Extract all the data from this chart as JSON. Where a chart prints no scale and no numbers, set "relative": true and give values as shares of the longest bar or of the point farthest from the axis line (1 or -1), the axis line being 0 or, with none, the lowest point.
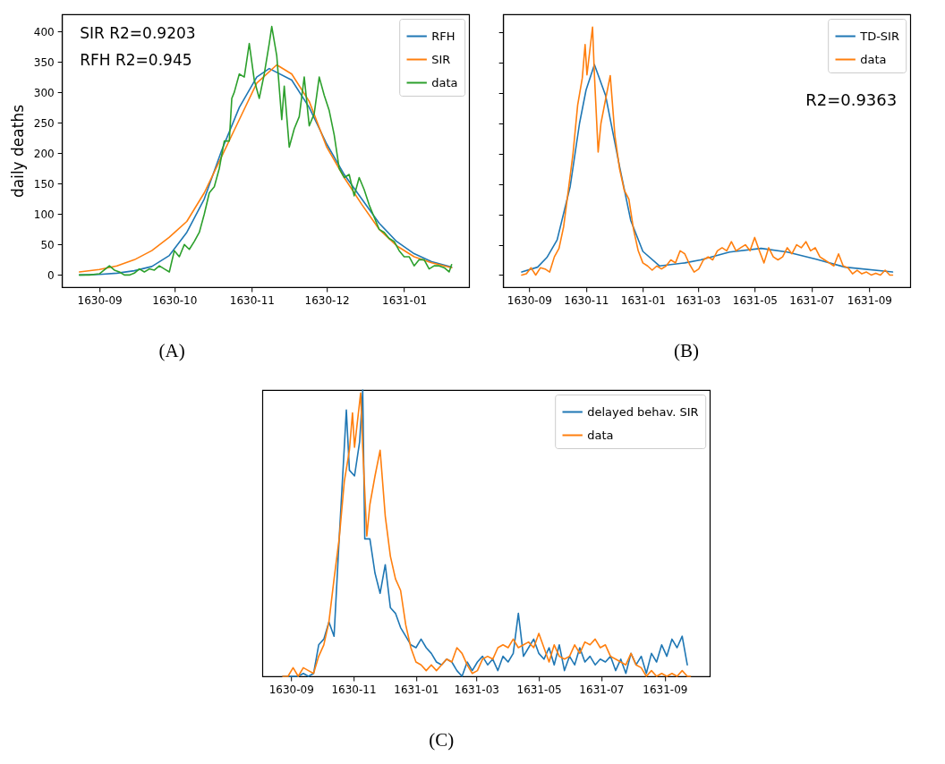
{
  "chart_data": [
    {
      "type": "line",
      "ylabel": "daily deaths",
      "xlim": [
        "1630-08-17",
        "1631-01-27"
      ],
      "xticks": [
        "1630-09",
        "1630-10",
        "1630-11",
        "1630-12",
        "1631-01"
      ],
      "ylim": [
        -20,
        428
      ],
      "yticks": [
        0,
        50,
        100,
        150,
        200,
        250,
        300,
        350,
        400
      ],
      "legend": "top right",
      "annotations": [
        "SIR R2=0.9203",
        "RFH R2=0.945",
        "(A)"
      ],
      "series": [
        {
          "name": "RFH",
          "color": "#1f77b4",
          "x": [
            "1630-08-24",
            "1630-09-01",
            "1630-09-08",
            "1630-09-15",
            "1630-09-22",
            "1630-09-29",
            "1630-10-06",
            "1630-10-13",
            "1630-10-20",
            "1630-10-27",
            "1630-11-03",
            "1630-11-08",
            "1630-11-17",
            "1630-11-24",
            "1630-12-01",
            "1630-12-08",
            "1630-12-15",
            "1630-12-22",
            "1630-12-29",
            "1631-01-05",
            "1631-01-12",
            "1631-01-20"
          ],
          "values": [
            0,
            1,
            3,
            7,
            14,
            32,
            70,
            125,
            205,
            275,
            325,
            339,
            320,
            275,
            215,
            165,
            125,
            85,
            55,
            35,
            22,
            13
          ]
        },
        {
          "name": "SIR",
          "color": "#ff7f0e",
          "x": [
            "1630-08-24",
            "1630-09-01",
            "1630-09-08",
            "1630-09-15",
            "1630-09-22",
            "1630-09-29",
            "1630-10-06",
            "1630-10-13",
            "1630-10-20",
            "1630-10-27",
            "1630-11-03",
            "1630-11-11",
            "1630-11-17",
            "1630-11-24",
            "1630-12-01",
            "1630-12-08",
            "1630-12-15",
            "1630-12-22",
            "1630-12-29",
            "1631-01-05",
            "1631-01-12",
            "1631-01-20"
          ],
          "values": [
            5,
            9,
            15,
            25,
            40,
            62,
            88,
            135,
            195,
            255,
            315,
            345,
            330,
            285,
            210,
            160,
            116,
            75,
            48,
            30,
            20,
            12
          ]
        },
        {
          "name": "data",
          "color": "#2ca02c",
          "x": [
            "1630-08-24",
            "1630-08-28",
            "1630-09-01",
            "1630-09-05",
            "1630-09-07",
            "1630-09-09",
            "1630-09-11",
            "1630-09-13",
            "1630-09-15",
            "1630-09-17",
            "1630-09-19",
            "1630-09-21",
            "1630-09-23",
            "1630-09-25",
            "1630-09-27",
            "1630-09-29",
            "1630-10-01",
            "1630-10-03",
            "1630-10-05",
            "1630-10-07",
            "1630-10-09",
            "1630-10-11",
            "1630-10-13",
            "1630-10-15",
            "1630-10-17",
            "1630-10-19",
            "1630-10-21",
            "1630-10-23",
            "1630-10-24",
            "1630-10-25",
            "1630-10-27",
            "1630-10-29",
            "1630-10-31",
            "1630-11-02",
            "1630-11-04",
            "1630-11-06",
            "1630-11-08",
            "1630-11-09",
            "1630-11-11",
            "1630-11-13",
            "1630-11-14",
            "1630-11-16",
            "1630-11-18",
            "1630-11-20",
            "1630-11-22",
            "1630-11-24",
            "1630-11-26",
            "1630-11-28",
            "1630-11-30",
            "1630-12-02",
            "1630-12-04",
            "1630-12-06",
            "1630-12-08",
            "1630-12-10",
            "1630-12-12",
            "1630-12-14",
            "1630-12-16",
            "1630-12-18",
            "1630-12-20",
            "1630-12-22",
            "1630-12-24",
            "1630-12-26",
            "1630-12-28",
            "1630-12-30",
            "1631-01-01",
            "1631-01-03",
            "1631-01-05",
            "1631-01-07",
            "1631-01-09",
            "1631-01-11",
            "1631-01-13",
            "1631-01-15",
            "1631-01-17",
            "1631-01-19",
            "1631-01-20"
          ],
          "values": [
            0,
            0,
            2,
            15,
            8,
            5,
            0,
            0,
            3,
            10,
            5,
            10,
            8,
            15,
            10,
            5,
            40,
            30,
            50,
            42,
            55,
            70,
            100,
            135,
            145,
            175,
            220,
            220,
            290,
            300,
            330,
            325,
            380,
            320,
            290,
            330,
            380,
            408,
            360,
            255,
            310,
            210,
            240,
            260,
            325,
            245,
            265,
            325,
            295,
            270,
            230,
            175,
            160,
            165,
            130,
            160,
            140,
            115,
            95,
            75,
            70,
            60,
            55,
            40,
            30,
            30,
            15,
            25,
            25,
            10,
            15,
            15,
            12,
            5,
            17
          ]
        }
      ]
    },
    {
      "type": "line",
      "xlim": [
        "1630-08-04",
        "1631-10-15"
      ],
      "xticks": [
        "1630-09",
        "1630-11",
        "1631-01",
        "1631-03",
        "1631-05",
        "1631-07",
        "1631-09"
      ],
      "ylim": [
        -20,
        430
      ],
      "yticks": [
        0,
        50,
        100,
        150,
        200,
        250,
        300,
        350,
        400
      ],
      "tick_labels": "x",
      "legend": "top right",
      "annotations": [
        "R2=0.9363",
        "(B)"
      ],
      "series": [
        {
          "name": "TD-SIR",
          "color": "#1f77b4",
          "x": [
            "1630-08-24",
            "1630-09-10",
            "1630-09-20",
            "1630-10-01",
            "1630-10-15",
            "1630-10-25",
            "1630-11-01",
            "1630-11-10",
            "1630-11-22",
            "1630-12-07",
            "1630-12-19",
            "1631-01-01",
            "1631-01-19",
            "1631-02-15",
            "1631-03-04",
            "1631-04-04",
            "1631-05-08",
            "1631-06-05",
            "1631-07-06",
            "1631-08-06",
            "1631-09-26"
          ],
          "values": [
            5,
            13,
            29,
            58,
            146,
            250,
            305,
            347,
            296,
            179,
            90,
            39,
            15,
            20,
            25,
            38,
            44,
            38,
            26,
            13,
            5
          ]
        },
        {
          "name": "data",
          "color": "#ff7f0e",
          "x": [
            "1630-08-24",
            "1630-08-29",
            "1630-09-03",
            "1630-09-08",
            "1630-09-13",
            "1630-09-18",
            "1630-09-23",
            "1630-09-28",
            "1630-10-03",
            "1630-10-08",
            "1630-10-13",
            "1630-10-18",
            "1630-10-23",
            "1630-10-28",
            "1630-10-31",
            "1630-11-02",
            "1630-11-08",
            "1630-11-10",
            "1630-11-14",
            "1630-11-17",
            "1630-11-22",
            "1630-11-27",
            "1630-12-02",
            "1630-12-07",
            "1630-12-12",
            "1630-12-17",
            "1630-12-22",
            "1630-12-27",
            "1631-01-01",
            "1631-01-06",
            "1631-01-11",
            "1631-01-16",
            "1631-01-21",
            "1631-01-26",
            "1631-01-31",
            "1631-02-05",
            "1631-02-10",
            "1631-02-15",
            "1631-02-20",
            "1631-02-25",
            "1631-03-02",
            "1631-03-07",
            "1631-03-12",
            "1631-03-17",
            "1631-03-22",
            "1631-03-27",
            "1631-04-01",
            "1631-04-06",
            "1631-04-11",
            "1631-04-16",
            "1631-04-21",
            "1631-04-26",
            "1631-05-01",
            "1631-05-06",
            "1631-05-11",
            "1631-05-16",
            "1631-05-21",
            "1631-05-26",
            "1631-05-31",
            "1631-06-05",
            "1631-06-10",
            "1631-06-15",
            "1631-06-20",
            "1631-06-25",
            "1631-06-30",
            "1631-07-05",
            "1631-07-10",
            "1631-07-15",
            "1631-07-20",
            "1631-07-25",
            "1631-07-30",
            "1631-08-04",
            "1631-08-09",
            "1631-08-14",
            "1631-08-19",
            "1631-08-24",
            "1631-08-29",
            "1631-09-03",
            "1631-09-08",
            "1631-09-13",
            "1631-09-18",
            "1631-09-23",
            "1631-09-26"
          ],
          "values": [
            0,
            2,
            12,
            0,
            12,
            10,
            5,
            30,
            44,
            80,
            140,
            200,
            280,
            325,
            380,
            330,
            409,
            330,
            203,
            250,
            290,
            329,
            230,
            175,
            140,
            125,
            75,
            40,
            20,
            15,
            8,
            15,
            10,
            15,
            25,
            20,
            40,
            35,
            18,
            5,
            10,
            25,
            30,
            25,
            40,
            45,
            40,
            55,
            40,
            45,
            50,
            40,
            62,
            40,
            20,
            45,
            30,
            25,
            30,
            45,
            35,
            50,
            45,
            55,
            40,
            45,
            30,
            25,
            20,
            15,
            35,
            15,
            12,
            2,
            8,
            2,
            5,
            0,
            3,
            0,
            8,
            0,
            0
          ]
        }
      ]
    },
    {
      "type": "line",
      "xlim": [
        "1630-08-04",
        "1631-10-15"
      ],
      "xticks": [
        "1630-09",
        "1630-11",
        "1631-01",
        "1631-03",
        "1631-05",
        "1631-07",
        "1631-09"
      ],
      "relative": true,
      "tick_labels": "x",
      "legend": "top right",
      "annotations": [
        "(C)"
      ],
      "series": [
        {
          "name": "delayed behav. SIR",
          "color": "#1f77b4",
          "x": [
            "1630-08-24",
            "1630-08-29",
            "1630-09-03",
            "1630-09-08",
            "1630-09-13",
            "1630-09-18",
            "1630-09-23",
            "1630-09-28",
            "1630-10-03",
            "1630-10-08",
            "1630-10-13",
            "1630-10-18",
            "1630-10-23",
            "1630-10-25",
            "1630-10-28",
            "1630-11-02",
            "1630-11-07",
            "1630-11-10",
            "1630-11-12",
            "1630-11-17",
            "1630-11-22",
            "1630-11-27",
            "1630-12-02",
            "1630-12-07",
            "1630-12-12",
            "1630-12-17",
            "1630-12-22",
            "1630-12-27",
            "1631-01-01",
            "1631-01-06",
            "1631-01-11",
            "1631-01-16",
            "1631-01-21",
            "1631-01-26",
            "1631-01-31",
            "1631-02-05",
            "1631-02-10",
            "1631-02-15",
            "1631-02-20",
            "1631-02-25",
            "1631-03-02",
            "1631-03-07",
            "1631-03-12",
            "1631-03-17",
            "1631-03-22",
            "1631-03-27",
            "1631-04-01",
            "1631-04-06",
            "1631-04-11",
            "1631-04-16",
            "1631-04-21",
            "1631-04-26",
            "1631-05-01",
            "1631-05-06",
            "1631-05-11",
            "1631-05-16",
            "1631-05-21",
            "1631-05-26",
            "1631-05-31",
            "1631-06-05",
            "1631-06-10",
            "1631-06-15",
            "1631-06-20",
            "1631-06-25",
            "1631-06-30",
            "1631-07-05",
            "1631-07-10",
            "1631-07-15",
            "1631-07-20",
            "1631-07-25",
            "1631-07-30",
            "1631-08-04",
            "1631-08-09",
            "1631-08-14",
            "1631-08-19",
            "1631-08-24",
            "1631-08-29",
            "1631-09-03",
            "1631-09-08",
            "1631-09-13",
            "1631-09-18",
            "1631-09-23"
          ],
          "values": [
            0,
            0,
            0,
            0,
            0.01,
            0,
            0.01,
            0.11,
            0.13,
            0.19,
            0.14,
            0.48,
            0.8,
            0.93,
            0.72,
            0.7,
            0.82,
            1,
            0.48,
            0.48,
            0.36,
            0.29,
            0.39,
            0.24,
            0.22,
            0.17,
            0.14,
            0.11,
            0.1,
            0.13,
            0.1,
            0.08,
            0.05,
            0.04,
            0.06,
            0.05,
            0.02,
            0,
            0.05,
            0.02,
            0.05,
            0.07,
            0.04,
            0.06,
            0.02,
            0.07,
            0.05,
            0.08,
            0.22,
            0.07,
            0.1,
            0.13,
            0.08,
            0.06,
            0.1,
            0.04,
            0.11,
            0.02,
            0.07,
            0.04,
            0.1,
            0.05,
            0.07,
            0.04,
            0.06,
            0.05,
            0.07,
            0.02,
            0.06,
            0.01,
            0.08,
            0.04,
            0.07,
            0.01,
            0.08,
            0.05,
            0.11,
            0.07,
            0.13,
            0.1,
            0.14,
            0.04
          ]
        },
        {
          "name": "data",
          "color": "#ff7f0e",
          "x": [
            "1630-08-24",
            "1630-08-29",
            "1630-09-03",
            "1630-09-08",
            "1630-09-13",
            "1630-09-18",
            "1630-09-23",
            "1630-09-28",
            "1630-10-03",
            "1630-10-08",
            "1630-10-13",
            "1630-10-18",
            "1630-10-23",
            "1630-10-28",
            "1630-10-31",
            "1630-11-02",
            "1630-11-08",
            "1630-11-10",
            "1630-11-14",
            "1630-11-17",
            "1630-11-22",
            "1630-11-27",
            "1630-12-02",
            "1630-12-07",
            "1630-12-12",
            "1630-12-17",
            "1630-12-22",
            "1630-12-27",
            "1631-01-01",
            "1631-01-06",
            "1631-01-11",
            "1631-01-16",
            "1631-01-21",
            "1631-01-26",
            "1631-01-31",
            "1631-02-05",
            "1631-02-10",
            "1631-02-15",
            "1631-02-20",
            "1631-02-25",
            "1631-03-02",
            "1631-03-07",
            "1631-03-12",
            "1631-03-17",
            "1631-03-22",
            "1631-03-27",
            "1631-04-01",
            "1631-04-06",
            "1631-04-11",
            "1631-04-16",
            "1631-04-21",
            "1631-04-26",
            "1631-05-01",
            "1631-05-06",
            "1631-05-11",
            "1631-05-16",
            "1631-05-21",
            "1631-05-26",
            "1631-05-31",
            "1631-06-05",
            "1631-06-10",
            "1631-06-15",
            "1631-06-20",
            "1631-06-25",
            "1631-06-30",
            "1631-07-05",
            "1631-07-10",
            "1631-07-15",
            "1631-07-20",
            "1631-07-25",
            "1631-07-30",
            "1631-08-04",
            "1631-08-09",
            "1631-08-14",
            "1631-08-19",
            "1631-08-24",
            "1631-08-29",
            "1631-09-03",
            "1631-09-08",
            "1631-09-13",
            "1631-09-18",
            "1631-09-23",
            "1631-09-26"
          ],
          "values": [
            0,
            0,
            0.03,
            0,
            0.03,
            0.02,
            0.01,
            0.07,
            0.11,
            0.19,
            0.34,
            0.48,
            0.68,
            0.79,
            0.92,
            0.8,
            0.99,
            0.8,
            0.49,
            0.6,
            0.7,
            0.79,
            0.56,
            0.42,
            0.34,
            0.3,
            0.18,
            0.1,
            0.05,
            0.04,
            0.02,
            0.04,
            0.02,
            0.04,
            0.06,
            0.05,
            0.1,
            0.08,
            0.04,
            0.01,
            0.02,
            0.06,
            0.07,
            0.06,
            0.1,
            0.11,
            0.1,
            0.13,
            0.1,
            0.11,
            0.12,
            0.1,
            0.15,
            0.1,
            0.05,
            0.11,
            0.07,
            0.06,
            0.07,
            0.11,
            0.08,
            0.12,
            0.11,
            0.13,
            0.1,
            0.11,
            0.07,
            0.06,
            0.05,
            0.04,
            0.08,
            0.04,
            0.03,
            0,
            0.02,
            0,
            0.01,
            0,
            0.01,
            0,
            0.02,
            0,
            0
          ]
        }
      ]
    }
  ]
}
